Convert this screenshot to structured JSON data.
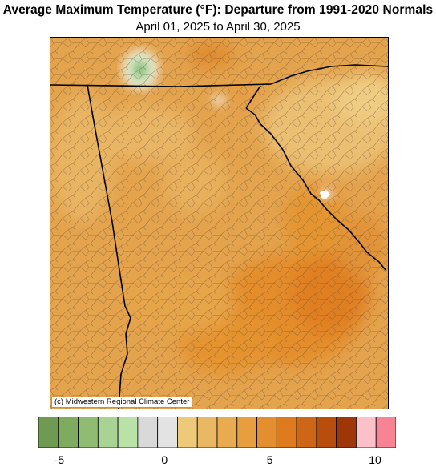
{
  "title": "Average Maximum Temperature (°F): Departure from 1991-2020 Normals",
  "subtitle": "April 01, 2025 to April 30, 2025",
  "credit": "(c) Midwestern Regional Climate Center",
  "legend": {
    "colors": [
      "#6f9a52",
      "#7fab60",
      "#8fbc72",
      "#a8d394",
      "#b9e3a6",
      "#d9d9d9",
      "#e3e3e3",
      "#edca7a",
      "#e9b865",
      "#e8ab50",
      "#e69e3f",
      "#e48f2f",
      "#dd7b1e",
      "#cd6616",
      "#b84e0e",
      "#9f3607",
      "#fcc0c8",
      "#f68492"
    ],
    "tick_labels": [
      {
        "text": "-5",
        "value": -5
      },
      {
        "text": "0",
        "value": 0
      },
      {
        "text": "5",
        "value": 5
      },
      {
        "text": "10",
        "value": 10
      }
    ]
  }
}
